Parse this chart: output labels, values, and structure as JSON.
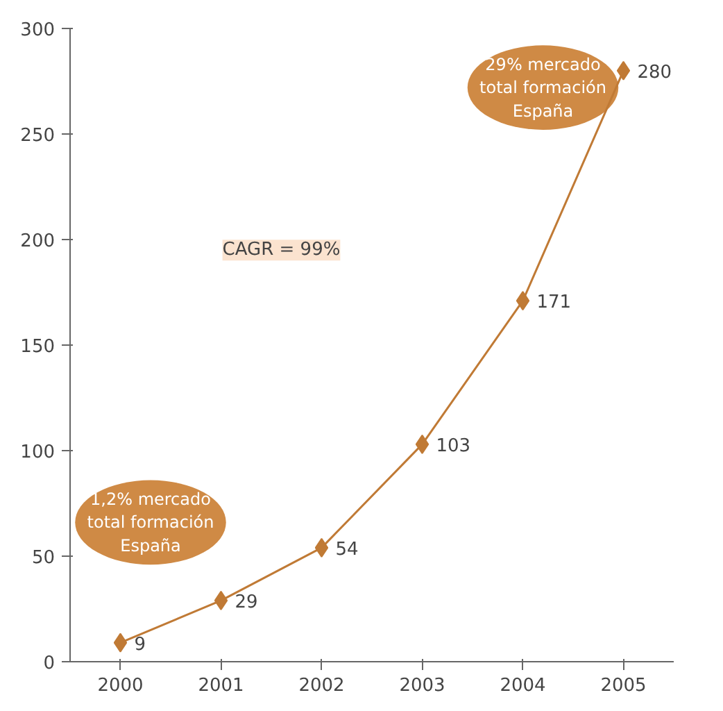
{
  "chart_data": {
    "type": "line",
    "categories": [
      "2000",
      "2001",
      "2002",
      "2003",
      "2004",
      "2005"
    ],
    "series": [
      {
        "color": "#c07a35",
        "values": [
          9,
          29,
          54,
          103,
          171,
          280
        ]
      }
    ],
    "ylim": [
      0,
      300
    ],
    "yticks": [
      0,
      50,
      100,
      150,
      200,
      250,
      300
    ],
    "marker": "diamond",
    "data_labels": true,
    "annotations": [
      "1,2% mercado total formación España",
      "29% mercado total formación España",
      "CAGR = 99%"
    ]
  }
}
